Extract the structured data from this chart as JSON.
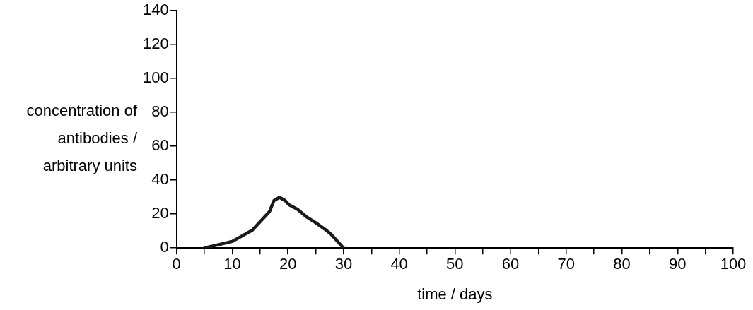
{
  "chart_data": {
    "type": "line",
    "xlabel": "time / days",
    "ylabel": "concentration of antibodies / arbitrary units",
    "x": [
      5,
      10,
      13.6,
      16.7,
      17.5,
      18.5,
      19.5,
      20.2,
      21.7,
      23.3,
      25,
      26.6,
      27.7,
      30
    ],
    "series": [
      {
        "color": "#1a1a1a",
        "values": [
          0,
          3.9,
          10.5,
          21.5,
          28,
          29.9,
          28,
          25.5,
          22.9,
          18.5,
          14.9,
          11.2,
          8.3,
          0
        ]
      }
    ],
    "xlim": [
      0,
      100
    ],
    "xticks": [
      0,
      {
        "value": 5,
        "label": null
      },
      10,
      {
        "value": 15,
        "label": null
      },
      20,
      {
        "value": 25,
        "label": null
      },
      30,
      {
        "value": 35,
        "label": null
      },
      40,
      {
        "value": 45,
        "label": null
      },
      50,
      {
        "value": 55,
        "label": null
      },
      60,
      {
        "value": 65,
        "label": null
      },
      70,
      {
        "value": 75,
        "label": null
      },
      80,
      {
        "value": 85,
        "label": null
      },
      90,
      {
        "value": 95,
        "label": null
      },
      100
    ],
    "ylim": [
      0,
      140
    ],
    "yticks": [
      0,
      20,
      40,
      60,
      80,
      100,
      120,
      140
    ],
    "grid": false,
    "legend": false,
    "marker": "none",
    "line_style": "solid"
  }
}
